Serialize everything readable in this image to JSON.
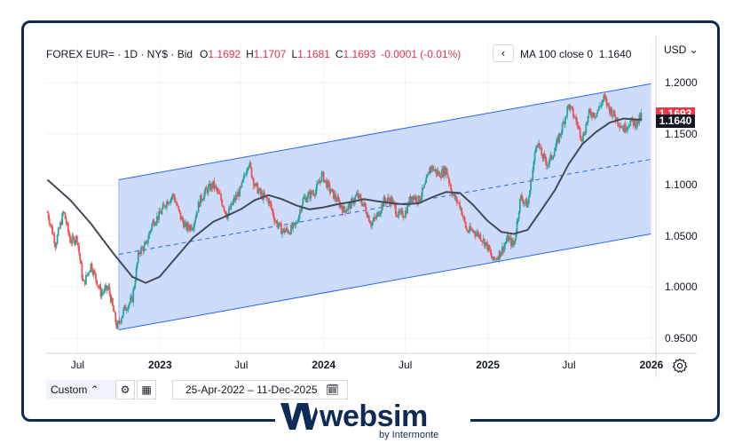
{
  "header": {
    "symbol": "FOREX EUR= · 1D · NY$ · Bid",
    "open_label": "O",
    "open": "1.1692",
    "high_label": "H",
    "high": "1.1707",
    "low_label": "L",
    "low": "1.1681",
    "close_label": "C",
    "close": "1.1693",
    "change": "-0.0001 (-0.01%)"
  },
  "indicator": {
    "collapse_icon": "chevron-left-icon",
    "collapse_glyph": "‹",
    "label": "MA 100 close 0",
    "value": "1.1640"
  },
  "price_axis": {
    "currency": "USD ⌄",
    "last_price": "1.1693",
    "ma_price": "1.1640",
    "last_color": "#f23645",
    "ma_color": "#131722"
  },
  "bottom_bar": {
    "timeframe": "Custom ⌃",
    "range_start": "25-Apr-2022",
    "range_sep": "–",
    "range_end": "11-Dec-2025"
  },
  "colors": {
    "up": "#26a69a",
    "down": "#ef5350",
    "channel_line": "#2962ff",
    "channel_fill": "#c5d6fb",
    "ma_line": "#444a57"
  },
  "brand": {
    "name": "websim",
    "tagline": "by Intermonte"
  },
  "chart_data": {
    "type": "candlestick",
    "xlabel": "",
    "ylabel": "",
    "x_ticks": [
      "Jul",
      "2023",
      "Jul",
      "2024",
      "Jul",
      "2025",
      "Jul",
      "2026"
    ],
    "y_ticks": [
      "1.2000",
      "1.1500",
      "1.1000",
      "1.0500",
      "1.0000",
      "0.9500"
    ],
    "ylim": [
      0.935,
      1.215
    ],
    "grid": true,
    "series": [
      {
        "points": [
          [
            "2022-04-25",
            1.073
          ],
          [
            "2022-05-13",
            1.042
          ],
          [
            "2022-05-31",
            1.074
          ],
          [
            "2022-06-15",
            1.045
          ],
          [
            "2022-06-30",
            1.048
          ],
          [
            "2022-07-14",
            1.002
          ],
          [
            "2022-07-31",
            1.022
          ],
          [
            "2022-08-22",
            0.994
          ],
          [
            "2022-09-08",
            0.999
          ],
          [
            "2022-09-27",
            0.96
          ],
          [
            "2022-10-13",
            0.978
          ],
          [
            "2022-10-31",
            0.988
          ],
          [
            "2022-11-15",
            1.035
          ],
          [
            "2022-11-30",
            1.04
          ],
          [
            "2022-12-15",
            1.063
          ],
          [
            "2022-12-30",
            1.07
          ],
          [
            "2023-01-15",
            1.083
          ],
          [
            "2023-01-31",
            1.09
          ],
          [
            "2023-02-15",
            1.069
          ],
          [
            "2023-02-28",
            1.058
          ],
          [
            "2023-03-15",
            1.06
          ],
          [
            "2023-03-31",
            1.085
          ],
          [
            "2023-04-15",
            1.095
          ],
          [
            "2023-04-30",
            1.1
          ],
          [
            "2023-05-15",
            1.088
          ],
          [
            "2023-05-31",
            1.07
          ],
          [
            "2023-06-15",
            1.085
          ],
          [
            "2023-06-30",
            1.095
          ],
          [
            "2023-07-17",
            1.123
          ],
          [
            "2023-07-31",
            1.1
          ],
          [
            "2023-08-15",
            1.09
          ],
          [
            "2023-08-31",
            1.085
          ],
          [
            "2023-09-15",
            1.065
          ],
          [
            "2023-09-30",
            1.055
          ],
          [
            "2023-10-15",
            1.055
          ],
          [
            "2023-10-31",
            1.06
          ],
          [
            "2023-11-15",
            1.085
          ],
          [
            "2023-11-30",
            1.09
          ],
          [
            "2023-12-15",
            1.095
          ],
          [
            "2023-12-28",
            1.11
          ],
          [
            "2024-01-15",
            1.095
          ],
          [
            "2024-01-31",
            1.085
          ],
          [
            "2024-02-15",
            1.075
          ],
          [
            "2024-02-29",
            1.08
          ],
          [
            "2024-03-15",
            1.09
          ],
          [
            "2024-03-31",
            1.08
          ],
          [
            "2024-04-16",
            1.062
          ],
          [
            "2024-04-30",
            1.07
          ],
          [
            "2024-05-15",
            1.085
          ],
          [
            "2024-05-31",
            1.085
          ],
          [
            "2024-06-15",
            1.07
          ],
          [
            "2024-06-30",
            1.072
          ],
          [
            "2024-07-15",
            1.09
          ],
          [
            "2024-07-31",
            1.085
          ],
          [
            "2024-08-15",
            1.1
          ],
          [
            "2024-08-26",
            1.118
          ],
          [
            "2024-09-15",
            1.11
          ],
          [
            "2024-09-30",
            1.115
          ],
          [
            "2024-10-15",
            1.09
          ],
          [
            "2024-10-31",
            1.08
          ],
          [
            "2024-11-15",
            1.055
          ],
          [
            "2024-11-30",
            1.055
          ],
          [
            "2024-12-15",
            1.05
          ],
          [
            "2024-12-31",
            1.04
          ],
          [
            "2025-01-13",
            1.025
          ],
          [
            "2025-01-31",
            1.035
          ],
          [
            "2025-02-15",
            1.048
          ],
          [
            "2025-02-28",
            1.04
          ],
          [
            "2025-03-15",
            1.088
          ],
          [
            "2025-03-31",
            1.08
          ],
          [
            "2025-04-21",
            1.145
          ],
          [
            "2025-04-30",
            1.13
          ],
          [
            "2025-05-15",
            1.12
          ],
          [
            "2025-05-31",
            1.135
          ],
          [
            "2025-06-15",
            1.155
          ],
          [
            "2025-06-30",
            1.178
          ],
          [
            "2025-07-15",
            1.165
          ],
          [
            "2025-07-31",
            1.145
          ],
          [
            "2025-08-15",
            1.17
          ],
          [
            "2025-08-31",
            1.17
          ],
          [
            "2025-09-17",
            1.185
          ],
          [
            "2025-09-30",
            1.174
          ],
          [
            "2025-10-15",
            1.165
          ],
          [
            "2025-10-31",
            1.155
          ],
          [
            "2025-11-15",
            1.162
          ],
          [
            "2025-11-30",
            1.16
          ],
          [
            "2025-12-11",
            1.1693
          ]
        ]
      }
    ],
    "moving_average": {
      "name": "MA 100 close 0",
      "points": [
        [
          "2022-04-25",
          1.105
        ],
        [
          "2022-06-15",
          1.085
        ],
        [
          "2022-07-31",
          1.062
        ],
        [
          "2022-09-15",
          1.035
        ],
        [
          "2022-10-31",
          1.01
        ],
        [
          "2022-11-30",
          1.004
        ],
        [
          "2022-12-31",
          1.01
        ],
        [
          "2023-01-31",
          1.026
        ],
        [
          "2023-03-15",
          1.048
        ],
        [
          "2023-04-30",
          1.064
        ],
        [
          "2023-05-31",
          1.07
        ],
        [
          "2023-06-30",
          1.076
        ],
        [
          "2023-07-31",
          1.085
        ],
        [
          "2023-08-31",
          1.09
        ],
        [
          "2023-09-30",
          1.086
        ],
        [
          "2023-10-31",
          1.08
        ],
        [
          "2023-11-30",
          1.076
        ],
        [
          "2023-12-31",
          1.078
        ],
        [
          "2024-01-31",
          1.081
        ],
        [
          "2024-02-29",
          1.083
        ],
        [
          "2024-03-31",
          1.086
        ],
        [
          "2024-04-30",
          1.084
        ],
        [
          "2024-05-31",
          1.082
        ],
        [
          "2024-06-30",
          1.081
        ],
        [
          "2024-07-31",
          1.082
        ],
        [
          "2024-08-31",
          1.088
        ],
        [
          "2024-09-30",
          1.093
        ],
        [
          "2024-10-31",
          1.092
        ],
        [
          "2024-11-30",
          1.08
        ],
        [
          "2024-12-31",
          1.065
        ],
        [
          "2025-01-31",
          1.054
        ],
        [
          "2025-02-28",
          1.052
        ],
        [
          "2025-03-31",
          1.056
        ],
        [
          "2025-04-30",
          1.075
        ],
        [
          "2025-05-31",
          1.095
        ],
        [
          "2025-06-30",
          1.12
        ],
        [
          "2025-07-31",
          1.14
        ],
        [
          "2025-08-31",
          1.152
        ],
        [
          "2025-09-30",
          1.161
        ],
        [
          "2025-10-31",
          1.165
        ],
        [
          "2025-11-30",
          1.164
        ],
        [
          "2025-12-11",
          1.164
        ]
      ]
    },
    "regression_channel": {
      "start": "2022-10-01",
      "end": "2025-12-31",
      "upper": [
        1.105,
        1.199
      ],
      "mid": [
        1.032,
        1.125
      ],
      "lower": [
        0.958,
        1.052
      ]
    }
  }
}
